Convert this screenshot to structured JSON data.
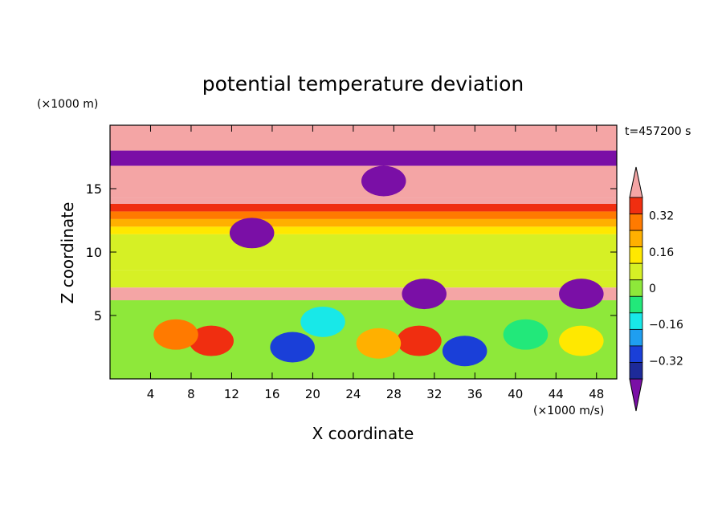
{
  "chart_data": {
    "type": "heatmap",
    "title": "potential temperature deviation",
    "xlabel": "X coordinate",
    "ylabel": "Z coordinate",
    "x_unit": "(×1000 m/s)",
    "y_unit": "(×1000 m)",
    "time_label": "t=457200 s",
    "xlim": [
      0,
      50
    ],
    "ylim": [
      0,
      20
    ],
    "x_ticks": [
      4,
      8,
      12,
      16,
      20,
      24,
      28,
      32,
      36,
      40,
      44,
      48
    ],
    "y_ticks": [
      5,
      10,
      15
    ],
    "colorbar": {
      "levels": [
        -0.48,
        -0.4,
        -0.32,
        -0.24,
        -0.16,
        -0.08,
        0,
        0.08,
        0.16,
        0.24,
        0.32,
        0.4,
        0.48
      ],
      "tick_values": [
        "0.32",
        "0.16",
        "0",
        "−0.16",
        "−0.32"
      ],
      "colors": [
        "#7a0fa6",
        "#1d2a99",
        "#1a3fd8",
        "#1f9ef0",
        "#18e8e8",
        "#22e87a",
        "#8ee83a",
        "#d6f025",
        "#ffe800",
        "#ffb000",
        "#ff7a00",
        "#f02e10",
        "#f4a5a5"
      ],
      "extend": "both"
    },
    "layers": [
      {
        "z_range": [
          18.0,
          20.0
        ],
        "value": 0.55
      },
      {
        "z_range": [
          16.8,
          18.0
        ],
        "value": -0.55
      },
      {
        "z_range": [
          14.3,
          16.8
        ],
        "value": 0.5
      },
      {
        "z_range": [
          13.8,
          14.3
        ],
        "value": 0.45
      },
      {
        "z_range": [
          13.2,
          13.8
        ],
        "value": 0.36
      },
      {
        "z_range": [
          12.6,
          13.2
        ],
        "value": 0.28
      },
      {
        "z_range": [
          12.0,
          12.6
        ],
        "value": 0.2
      },
      {
        "z_range": [
          11.4,
          12.0
        ],
        "value": 0.12
      },
      {
        "z_range": [
          8.6,
          11.4
        ],
        "value": 0.04
      },
      {
        "z_range": [
          7.2,
          8.6
        ],
        "value": 0.06
      },
      {
        "z_range": [
          6.2,
          7.2
        ],
        "value": 0.55
      },
      {
        "z_range": [
          0.0,
          6.2
        ],
        "value": -0.05
      }
    ],
    "features": [
      {
        "x": 14.0,
        "z": 11.5,
        "value": -0.55
      },
      {
        "x": 27.0,
        "z": 15.6,
        "value": -0.55
      },
      {
        "x": 31.0,
        "z": 6.7,
        "value": -0.55
      },
      {
        "x": 46.5,
        "z": 6.7,
        "value": -0.55
      },
      {
        "x": 10.0,
        "z": 3.0,
        "value": 0.34
      },
      {
        "x": 6.5,
        "z": 3.5,
        "value": 0.3
      },
      {
        "x": 30.5,
        "z": 3.0,
        "value": 0.34
      },
      {
        "x": 26.5,
        "z": 2.8,
        "value": 0.22
      },
      {
        "x": 18.0,
        "z": 2.5,
        "value": -0.36
      },
      {
        "x": 21.0,
        "z": 4.5,
        "value": -0.24
      },
      {
        "x": 35.0,
        "z": 2.2,
        "value": -0.4
      },
      {
        "x": 41.0,
        "z": 3.5,
        "value": -0.1
      },
      {
        "x": 46.5,
        "z": 3.0,
        "value": 0.12
      }
    ]
  }
}
